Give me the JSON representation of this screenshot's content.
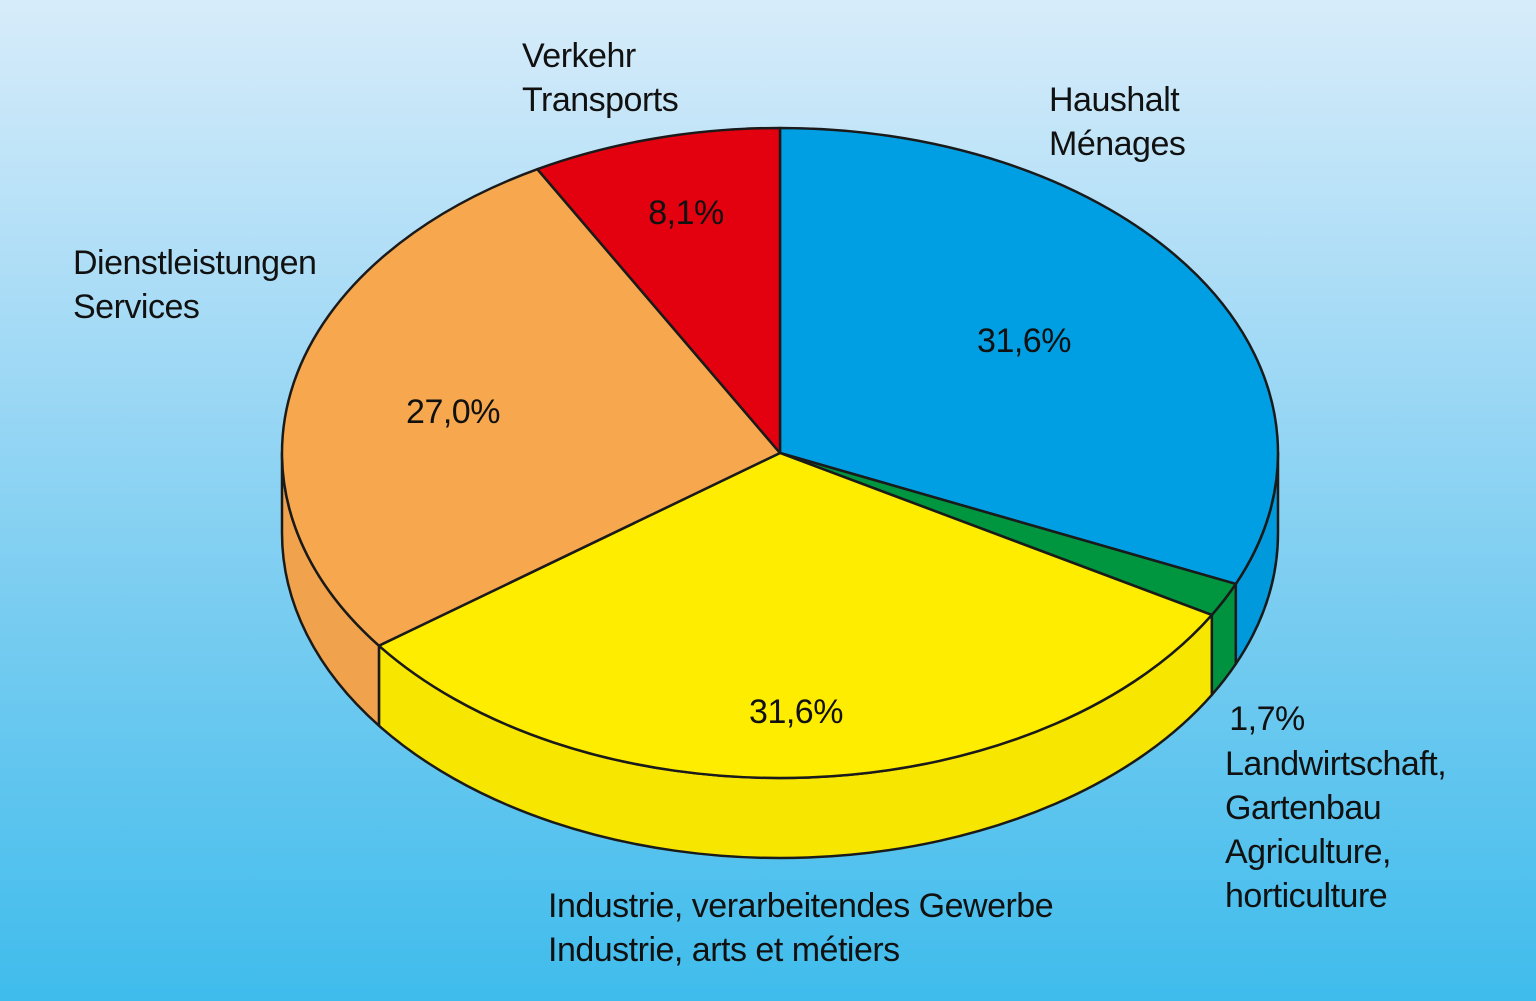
{
  "chart_data": {
    "type": "pie",
    "style": "3d",
    "slices": [
      {
        "label_lines": [
          "Haushalt",
          "Ménages"
        ],
        "value": 31.6,
        "value_label": "31,6%",
        "color": "#009fe3"
      },
      {
        "label_lines": [
          "Landwirtschaft,",
          "Gartenbau",
          "Agriculture,",
          "horticulture"
        ],
        "value": 1.7,
        "value_label": "1,7%",
        "color": "#009640"
      },
      {
        "label_lines": [
          "Industrie, verarbeitendes Gewerbe",
          "Industrie, arts et métiers"
        ],
        "value": 31.6,
        "value_label": "31,6%",
        "color": "#ffed00"
      },
      {
        "label_lines": [
          "Dienstleistungen",
          "Services"
        ],
        "value": 27.0,
        "value_label": "27,0%",
        "color": "#f7a84e"
      },
      {
        "label_lines": [
          "Verkehr",
          "Transports"
        ],
        "value": 8.1,
        "value_label": "8,1%",
        "color": "#e3000f"
      }
    ]
  }
}
